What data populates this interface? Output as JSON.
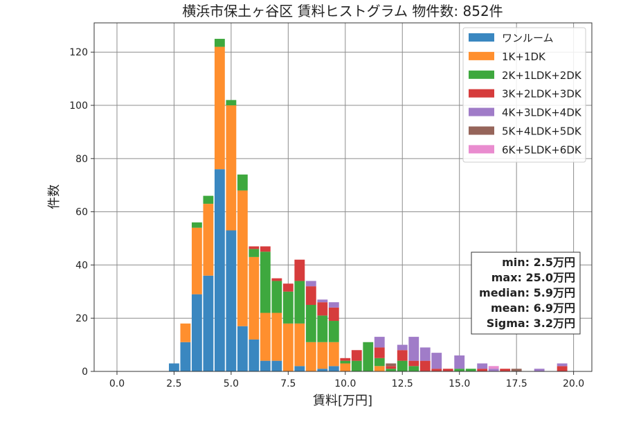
{
  "chart_data": {
    "type": "bar",
    "stacked": true,
    "title": "横浜市保土ヶ谷区 賃料ヒストグラム 物件数: 852件",
    "xlabel": "賃料[万円]",
    "ylabel": "件数",
    "xlim": [
      -1.0,
      20.8
    ],
    "ylim": [
      0,
      131
    ],
    "xticks": [
      0.0,
      2.5,
      5.0,
      7.5,
      10.0,
      12.5,
      15.0,
      17.5,
      20.0
    ],
    "xtick_labels": [
      "0.0",
      "2.5",
      "5.0",
      "7.5",
      "10.0",
      "12.5",
      "15.0",
      "17.5",
      "20.0"
    ],
    "yticks": [
      0,
      20,
      40,
      60,
      80,
      100,
      120
    ],
    "ytick_labels": [
      "0",
      "20",
      "40",
      "60",
      "80",
      "100",
      "120"
    ],
    "grid": true,
    "legend_position": "top-right",
    "bar_width": 0.45,
    "x": [
      2.5,
      3.0,
      3.5,
      4.0,
      4.5,
      5.0,
      5.5,
      6.0,
      6.5,
      7.0,
      7.5,
      8.0,
      8.5,
      9.0,
      9.5,
      10.0,
      10.5,
      11.0,
      11.5,
      12.0,
      12.5,
      13.0,
      13.5,
      14.0,
      14.5,
      15.0,
      15.5,
      16.0,
      16.5,
      17.0,
      17.5,
      18.0,
      18.5,
      19.0,
      19.5
    ],
    "series": [
      {
        "name": "ワンルーム",
        "color": "#3a87c0",
        "values": [
          3,
          11,
          29,
          36,
          76,
          53,
          17,
          12,
          4,
          4,
          0,
          2,
          0,
          1,
          2,
          0,
          0,
          0,
          0,
          0,
          0,
          0,
          0,
          0,
          0,
          0,
          0,
          0,
          0,
          0,
          0,
          0,
          0,
          0,
          0
        ]
      },
      {
        "name": "1K+1DK",
        "color": "#ff8f2e",
        "values": [
          0,
          7,
          25,
          27,
          46,
          47,
          51,
          31,
          18,
          18,
          18,
          16,
          11,
          10,
          9,
          3,
          0,
          0,
          2,
          0,
          0,
          0,
          0,
          0,
          0,
          0,
          0,
          0,
          0,
          0,
          0,
          0,
          0,
          0,
          0
        ]
      },
      {
        "name": "2K+1LDK+2DK",
        "color": "#3ea83e",
        "values": [
          0,
          0,
          2,
          3,
          3,
          2,
          6,
          3,
          23,
          12,
          12,
          16,
          14,
          10,
          8,
          1,
          4,
          11,
          3,
          1,
          4,
          2,
          0,
          0,
          0,
          1,
          1,
          0,
          0,
          0,
          0,
          0,
          0,
          0,
          0
        ]
      },
      {
        "name": "3K+2LDK+3DK",
        "color": "#d63c3c",
        "values": [
          0,
          0,
          0,
          0,
          0,
          0,
          0,
          1,
          2,
          1,
          3,
          8,
          7,
          5,
          5,
          1,
          4,
          0,
          4,
          1,
          4,
          2,
          4,
          1,
          1,
          0,
          0,
          1,
          0,
          1,
          0,
          0,
          0,
          0,
          2
        ]
      },
      {
        "name": "4K+3LDK+4DK",
        "color": "#a07cc8",
        "values": [
          0,
          0,
          0,
          0,
          0,
          0,
          0,
          0,
          0,
          0,
          0,
          0,
          2,
          1,
          2,
          0,
          0,
          0,
          4,
          0,
          2,
          9,
          5,
          6,
          0,
          5,
          0,
          2,
          1,
          0,
          0,
          0,
          1,
          0,
          1
        ]
      },
      {
        "name": "5K+4LDK+5DK",
        "color": "#96655a",
        "values": [
          0,
          0,
          0,
          0,
          0,
          0,
          0,
          0,
          0,
          0,
          0,
          0,
          0,
          0,
          0,
          0,
          0,
          0,
          0,
          1,
          0,
          0,
          0,
          0,
          0,
          0,
          0,
          0,
          0,
          0,
          1,
          0,
          0,
          0,
          0
        ]
      },
      {
        "name": "6K+5LDK+6DK",
        "color": "#e98ccf",
        "values": [
          0,
          0,
          0,
          0,
          0,
          0,
          0,
          0,
          0,
          0,
          0,
          0,
          0,
          0,
          0,
          0,
          0,
          0,
          0,
          0,
          0,
          0,
          0,
          0,
          0,
          0,
          0,
          0,
          1,
          0,
          0,
          0,
          0,
          0,
          0
        ]
      }
    ],
    "annotation_lines": [
      "min: 2.5万円",
      "max: 25.0万円",
      "median: 5.9万円",
      "mean: 6.9万円",
      "Sigma: 3.2万円"
    ]
  }
}
